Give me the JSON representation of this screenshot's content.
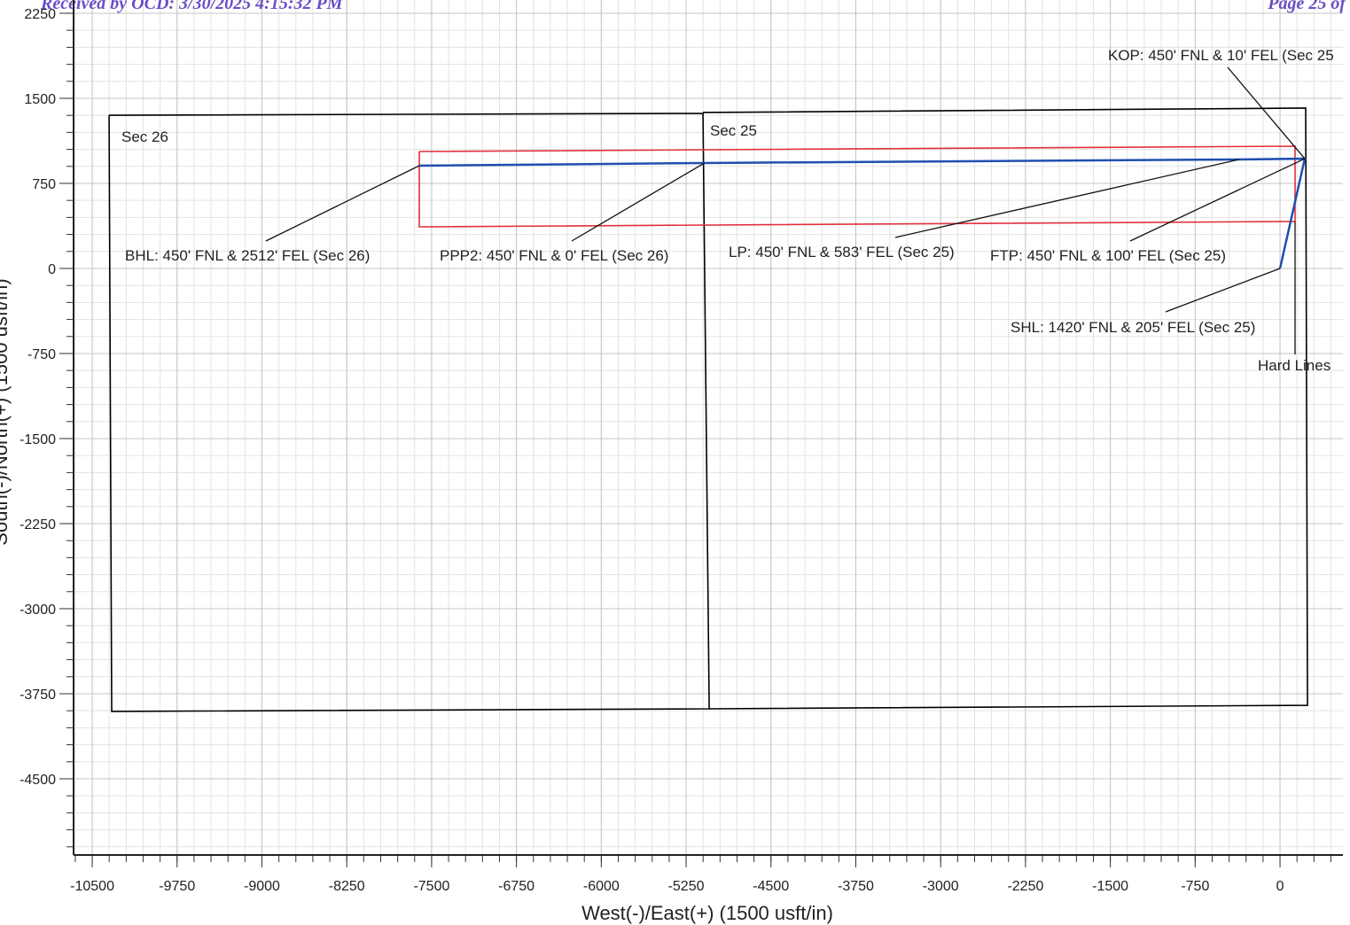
{
  "header": {
    "received": "Received by OCD: 3/30/2025 4:15:32 PM",
    "page": "Page 25 of"
  },
  "chart_data": {
    "type": "line",
    "xlabel": "West(-)/East(+) (1500 usft/in)",
    "ylabel": "South(-)/North(+) (1500 usft/in)",
    "xlim": [
      -10665,
      556
    ],
    "ylim": [
      -5172,
      2367
    ],
    "xticks": [
      -10500,
      -9750,
      -9000,
      -8250,
      -7500,
      -6750,
      -6000,
      -5250,
      -4500,
      -3750,
      -3000,
      -2250,
      -1500,
      -750,
      0
    ],
    "yticks": [
      2250,
      1500,
      750,
      0,
      -750,
      -1500,
      -2250,
      -3000,
      -3750,
      -4500
    ],
    "grid": true,
    "lines": [
      {
        "color": "#000000",
        "x": [
          -10351,
          -5101,
          -5046,
          -10328,
          -10351
        ],
        "y": [
          1351,
          1367,
          -3883,
          -3906,
          1351
        ]
      },
      {
        "color": "#000000",
        "x": [
          -5101,
          227,
          243,
          -5046
        ],
        "y": [
          1375,
          1414,
          -3852,
          -3883
        ]
      },
      {
        "color": "#e0303a",
        "x": [
          -7609,
          133,
          133,
          -7609,
          -7609
        ],
        "y": [
          1031,
          1078,
          414,
          367,
          1031
        ]
      },
      {
        "color": "#1f4fb0",
        "x": [
          0,
          219,
          -361,
          -5087,
          -7609
        ],
        "y": [
          0,
          968,
          961,
          930,
          906
        ]
      }
    ],
    "annotations": [
      {
        "text": "Sec 26",
        "x": -10351,
        "y": 1351
      },
      {
        "text": "Sec 25",
        "x": -5101,
        "y": 1375
      },
      {
        "text": "BHL: 450' FNL & 2512' FEL (Sec 26)",
        "x": -7609,
        "y": 906
      },
      {
        "text": "PPP2: 450' FNL & 0' FEL (Sec 26)",
        "x": -5087,
        "y": 930
      },
      {
        "text": "LP: 450' FNL & 583' FEL (Sec 25)",
        "x": -361,
        "y": 961
      },
      {
        "text": "FTP: 450' FNL & 100' FEL (Sec 25)",
        "x": 219,
        "y": 968
      },
      {
        "text": "KOP: 450' FNL & 10' FEL (Sec 25",
        "x": 219,
        "y": 968
      },
      {
        "text": "SHL: 1420' FNL & 205' FEL (Sec 25)",
        "x": 0,
        "y": 0
      },
      {
        "text": "Hard Lines",
        "x": 133,
        "y": 414
      }
    ]
  }
}
